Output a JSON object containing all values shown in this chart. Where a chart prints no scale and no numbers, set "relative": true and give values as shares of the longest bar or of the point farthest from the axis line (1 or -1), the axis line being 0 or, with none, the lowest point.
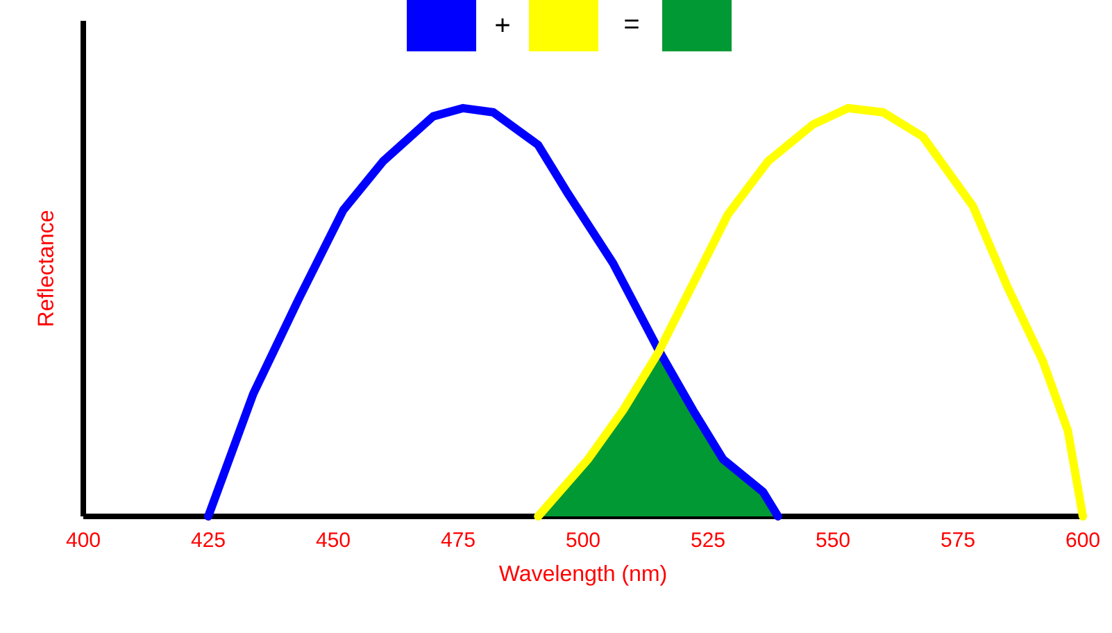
{
  "chart_data": {
    "type": "line",
    "relative": true,
    "xlabel": "Wavelength (nm)",
    "ylabel": "Reflectance",
    "xlim": [
      400,
      600
    ],
    "xticks": [
      400,
      425,
      450,
      475,
      500,
      525,
      550,
      575,
      600
    ],
    "grid": false,
    "annotations": [
      "+",
      "="
    ],
    "series": [
      {
        "type": "area",
        "color": "#009933",
        "x": [
          491,
          501,
          508,
          515,
          522,
          528,
          536,
          539
        ],
        "values": [
          0,
          0.14,
          0.26,
          0.4,
          0.26,
          0.14,
          0.06,
          0
        ]
      },
      {
        "color": "#0000ff",
        "x": [
          425,
          434,
          443,
          452,
          460,
          470,
          476,
          482,
          491,
          497,
          506,
          515,
          522,
          528,
          536,
          539
        ],
        "values": [
          0,
          0.3,
          0.53,
          0.75,
          0.87,
          0.98,
          1,
          0.99,
          0.91,
          0.79,
          0.62,
          0.41,
          0.26,
          0.14,
          0.06,
          0
        ]
      },
      {
        "color": "#ffff00",
        "x": [
          491,
          501,
          508,
          515,
          522,
          529,
          537,
          546,
          553,
          560,
          568,
          578,
          585,
          592,
          597,
          600
        ],
        "values": [
          0,
          0.14,
          0.26,
          0.4,
          0.57,
          0.74,
          0.87,
          0.96,
          1,
          0.99,
          0.93,
          0.76,
          0.56,
          0.38,
          0.21,
          0
        ]
      }
    ]
  }
}
